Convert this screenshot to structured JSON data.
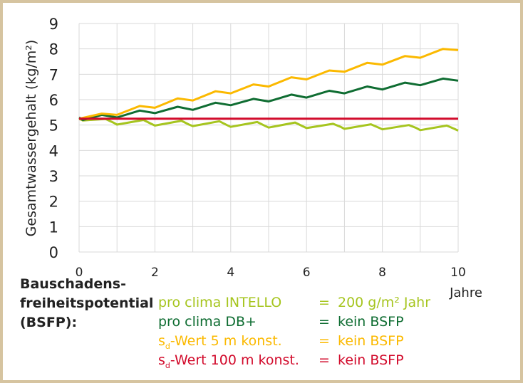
{
  "chart_data": {
    "type": "line",
    "ylabel": "Gesamtwassergehalt (kg/m²)",
    "xlabel": "Jahre",
    "xlim": [
      0,
      10
    ],
    "ylim": [
      0,
      9
    ],
    "xticks": [
      "0",
      "2",
      "4",
      "6",
      "8",
      "10"
    ],
    "yticks": [
      "0",
      "1",
      "2",
      "3",
      "4",
      "5",
      "6",
      "7",
      "8",
      "9"
    ],
    "grid": true,
    "series": [
      {
        "name": "pro clima INTELLO",
        "color": "#a6c51f",
        "x": [
          0,
          0.1,
          0.7,
          0.9,
          1.0,
          1.7,
          1.9,
          2.0,
          2.7,
          2.9,
          3.0,
          3.7,
          3.9,
          4.0,
          4.7,
          4.9,
          5.0,
          5.7,
          5.9,
          6.0,
          6.7,
          6.9,
          7.0,
          7.7,
          7.9,
          8.0,
          8.7,
          8.9,
          9.0,
          9.7,
          9.9,
          10.0
        ],
        "y": [
          5.25,
          5.18,
          5.24,
          5.1,
          5.02,
          5.2,
          5.05,
          4.98,
          5.17,
          5.02,
          4.96,
          5.15,
          5.0,
          4.93,
          5.12,
          4.97,
          4.9,
          5.1,
          4.95,
          4.88,
          5.05,
          4.93,
          4.85,
          5.03,
          4.9,
          4.83,
          5.0,
          4.88,
          4.8,
          4.98,
          4.85,
          4.78
        ]
      },
      {
        "name": "pro clima DB+",
        "color": "#0f6d32",
        "x": [
          0,
          0.1,
          0.6,
          1.0,
          1.6,
          2.0,
          2.6,
          3.0,
          3.6,
          4.0,
          4.6,
          5.0,
          5.6,
          6.0,
          6.6,
          7.0,
          7.6,
          8.0,
          8.6,
          9.0,
          9.6,
          10.0
        ],
        "y": [
          5.3,
          5.2,
          5.4,
          5.3,
          5.57,
          5.47,
          5.72,
          5.6,
          5.88,
          5.78,
          6.03,
          5.93,
          6.2,
          6.08,
          6.35,
          6.25,
          6.52,
          6.4,
          6.67,
          6.57,
          6.83,
          6.75
        ]
      },
      {
        "name": "sd-Wert 5 m konst.",
        "color": "#fbb900",
        "x": [
          0,
          0.6,
          1.0,
          1.6,
          2.0,
          2.6,
          3.0,
          3.6,
          4.0,
          4.6,
          5.0,
          5.6,
          6.0,
          6.6,
          7.0,
          7.6,
          8.0,
          8.6,
          9.0,
          9.6,
          10.0
        ],
        "y": [
          5.25,
          5.45,
          5.4,
          5.75,
          5.68,
          6.05,
          5.97,
          6.33,
          6.25,
          6.6,
          6.52,
          6.88,
          6.8,
          7.15,
          7.1,
          7.45,
          7.38,
          7.72,
          7.65,
          8.0,
          7.95
        ]
      },
      {
        "name": "sd-Wert 100 m konst.",
        "color": "#d20a2b",
        "x": [
          0,
          10
        ],
        "y": [
          5.25,
          5.25
        ]
      }
    ]
  },
  "legend": {
    "heading_lines": [
      "Bauschadens-",
      "freiheitspotential",
      "(BSFP):"
    ],
    "entries": [
      {
        "prefix": "",
        "sub": "",
        "label": "pro clima INTELLO",
        "value": "200 g/m² Jahr"
      },
      {
        "prefix": "",
        "sub": "",
        "label": "pro clima DB+",
        "value": "kein BSFP"
      },
      {
        "prefix": "s",
        "sub": "d",
        "label": "-Wert 5 m konst.",
        "value": "kein BSFP"
      },
      {
        "prefix": "s",
        "sub": "d",
        "label": "-Wert 100 m konst.",
        "value": "kein BSFP"
      }
    ],
    "eq": "="
  }
}
